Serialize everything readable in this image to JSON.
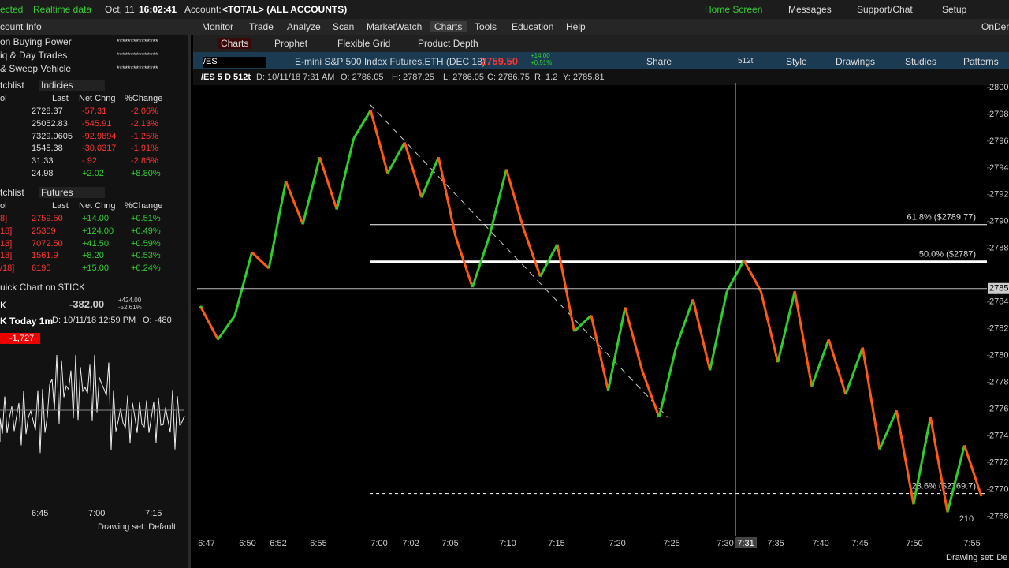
{
  "top_bar": {
    "status": "ected",
    "realtime": "Realtime data",
    "date": "Oct, 11",
    "time": "16:02:41",
    "account_label": "Account:",
    "account": "<TOTAL> (ALL ACCOUNTS)",
    "links": [
      "Home Screen",
      "Messages",
      "Support/Chat",
      "Setup"
    ]
  },
  "menu": {
    "items": [
      "Monitor",
      "Trade",
      "Analyze",
      "Scan",
      "MarketWatch",
      "Charts",
      "Tools",
      "Education",
      "Help"
    ],
    "on_demand": "OnDem"
  },
  "subtabs": [
    "Charts",
    "Prophet",
    "Flexible Grid",
    "Product Depth"
  ],
  "symbol_bar": {
    "symbol": "/ES",
    "description": "E-mini S&P 500 Index Futures,ETH (DEC 18)",
    "price": "2759.50",
    "change": "+14.00",
    "change_pct": "+0.51%",
    "share": "Share",
    "aggregation": "512t",
    "buttons": [
      "Style",
      "Drawings",
      "Studies",
      "Patterns"
    ]
  },
  "info_row": [
    "/ES 5 D 512t",
    "D: 10/11/18 7:31 AM",
    "O: 2786.05",
    "H: 2787.25",
    "L: 2786.05",
    "C: 2786.75",
    "R: 1.2",
    "Y: 2785.81"
  ],
  "account_info": {
    "title": "count Info",
    "rows": [
      [
        "on Buying Power",
        "***************"
      ],
      [
        "iq & Day Trades",
        "***************"
      ],
      [
        "& Sweep Vehicle",
        "***************"
      ]
    ]
  },
  "watchlists": [
    {
      "title": "tchlist",
      "name": "Indicies",
      "headers": [
        "ol",
        "Last",
        "Net Chng",
        "%Change"
      ],
      "rows": [
        [
          "2728.37",
          "-57.31",
          "-2.06%"
        ],
        [
          "25052.83",
          "-545.91",
          "-2.13%"
        ],
        [
          "7329.0605",
          "-92.9894",
          "-1.25%"
        ],
        [
          "1545.38",
          "-30.0317",
          "-1.91%"
        ],
        [
          "31.33",
          "-.92",
          "-2.85%"
        ],
        [
          "24.98",
          "+2.02",
          "+8.80%"
        ]
      ]
    },
    {
      "title": "tchlist",
      "name": "Futures",
      "headers": [
        "ol",
        "Last",
        "Net Chng",
        "%Change"
      ],
      "rows": [
        [
          "8]",
          "2759.50",
          "+14.00",
          "+0.51%"
        ],
        [
          "18]",
          "25309",
          "+124.00",
          "+0.49%"
        ],
        [
          "18]",
          "7072.50",
          "+41.50",
          "+0.59%"
        ],
        [
          "18]",
          "1561.9",
          "+8.20",
          "+0.53%"
        ],
        [
          "/18]",
          "6195",
          "+15.00",
          "+0.24%"
        ]
      ]
    }
  ],
  "quick_chart": {
    "title": "uick Chart on $TICK",
    "symbol": "K",
    "last": "-382.00",
    "change": "+424.00",
    "change_pct": "-52.61%",
    "label": "K Today 1m",
    "date": "D: 10/11/18 12:59 PM",
    "open": "O: -480",
    "marker": "-1,727",
    "xticks": [
      "6:45",
      "7:00",
      "7:15"
    ],
    "footer": "Drawing set: Default"
  },
  "chart": {
    "ylim": [
      2766.5,
      2800.35
    ],
    "yticks": [
      2768,
      2770,
      2772,
      2774,
      2776,
      2778,
      2780,
      2782,
      2784,
      2788,
      2790,
      2792,
      2794,
      2796,
      2798,
      2800
    ],
    "xticks": [
      "6:47",
      "6:50",
      "6:52",
      "6:55",
      "7:00",
      "7:02",
      "7:05",
      "7:10",
      "7:15",
      "7:20",
      "7:25",
      "7:30",
      "7:35",
      "7:40",
      "7:45",
      "7:50",
      "7:55"
    ],
    "prices": [
      2783.6,
      2781.2,
      2783.0,
      2787.7,
      2786.5,
      2793.0,
      2789.8,
      2794.8,
      2790.9,
      2796.2,
      2798.3,
      2793.6,
      2795.9,
      2791.8,
      2794.8,
      2788.9,
      2785.1,
      2788.9,
      2793.9,
      2789.5,
      2785.9,
      2788.3,
      2781.8,
      2783.0,
      2777.4,
      2783.6,
      2778.9,
      2775.4,
      2780.6,
      2784.2,
      2778.9,
      2784.8,
      2787.1,
      2784.8,
      2779.5,
      2784.8,
      2777.7,
      2781.2,
      2777.1,
      2780.6,
      2773.0,
      2775.9,
      2768.9,
      2775.4,
      2768.3,
      2773.3,
      2769.5
    ],
    "fib_levels": [
      {
        "value": 2789.77,
        "label": "61.8% ($2789.77)"
      },
      {
        "value": 2787,
        "label": "50.0% ($2787)"
      },
      {
        "value": 2769.7,
        "label": "-23.6% ($2769.7)"
      }
    ],
    "crosshair": {
      "value": 2785,
      "time": "7:31"
    },
    "bar_count": "210",
    "footer": "Drawing set: De"
  }
}
